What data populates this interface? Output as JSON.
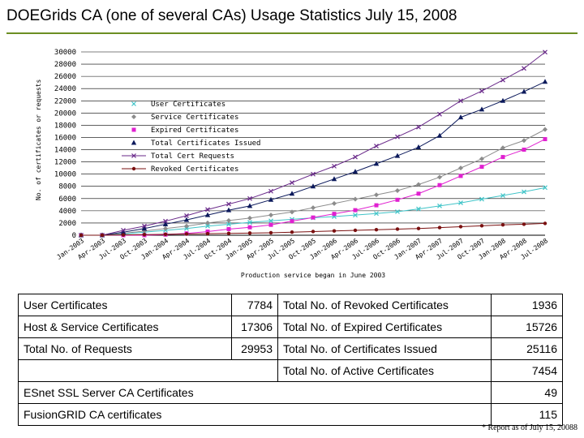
{
  "title": "DOEGrids CA (one of several CAs) Usage Statistics July 15, 2008",
  "footnote": "* Report as of July 15, 20088",
  "colors": {
    "accent_rule": "#6b8e23"
  },
  "stats": {
    "user_certificates_label": "User Certificates",
    "user_certificates_value": "7784",
    "revoked_label": "Total No. of Revoked Certificates",
    "revoked_value": "1936",
    "host_service_label": "Host & Service Certificates",
    "host_service_value": "17306",
    "expired_label": "Total No. of Expired Certificates",
    "expired_value": "15726",
    "requests_label": "Total No. of Requests",
    "requests_value": "29953",
    "issued_label": "Total No. of Certificates Issued",
    "issued_value": "25116",
    "active_label": "Total No. of Active Certificates",
    "active_value": "7454",
    "esnet_label": "ESnet SSL Server CA Certificates",
    "esnet_value": "49",
    "fusiongrid_label": "FusionGRID CA certificates",
    "fusiongrid_value": "115"
  },
  "chart_data": {
    "type": "line",
    "ylabel": "No. of certificates or requests",
    "xlabel": "Production service began in June 2003",
    "ylim": [
      0,
      30000
    ],
    "yticks": [
      "0",
      "2000",
      "4000",
      "6000",
      "8000",
      "10000",
      "12000",
      "14000",
      "16000",
      "18000",
      "20000",
      "22000",
      "24000",
      "26000",
      "28000",
      "30000"
    ],
    "categories": [
      "Jan-2003",
      "Apr-2003",
      "Jul-2003",
      "Oct-2003",
      "Jan-2004",
      "Apr-2004",
      "Jul-2004",
      "Oct-2004",
      "Jan-2005",
      "Apr-2005",
      "Jul-2005",
      "Oct-2005",
      "Jan-2006",
      "Apr-2006",
      "Jul-2006",
      "Oct-2006",
      "Jan-2007",
      "Apr-2007",
      "Jul-2007",
      "Oct-2007",
      "Jan-2008",
      "Apr-2008",
      "Jul-2008"
    ],
    "legend_position": "upper-left",
    "series": [
      {
        "name": "User Certificates",
        "marker": "x",
        "color": "#40c4c8",
        "values": [
          0,
          0,
          200,
          500,
          800,
          1100,
          1500,
          1800,
          2100,
          2350,
          2600,
          2850,
          3050,
          3300,
          3550,
          3850,
          4300,
          4800,
          5300,
          5900,
          6500,
          7100,
          7784
        ]
      },
      {
        "name": "Service Certificates",
        "marker": "diamond",
        "color": "#8c8c8c",
        "values": [
          0,
          0,
          300,
          700,
          1100,
          1500,
          2000,
          2400,
          2800,
          3300,
          3800,
          4500,
          5200,
          5900,
          6600,
          7300,
          8300,
          9500,
          11000,
          12500,
          14300,
          15500,
          17306
        ]
      },
      {
        "name": "Expired Certificates",
        "marker": "square",
        "color": "#e020d0",
        "values": [
          0,
          0,
          0,
          0,
          100,
          300,
          600,
          1000,
          1300,
          1700,
          2300,
          2900,
          3500,
          4100,
          4900,
          5800,
          6800,
          8200,
          9700,
          11200,
          12800,
          14000,
          15726
        ]
      },
      {
        "name": "Total Certificates Issued",
        "marker": "triangle",
        "color": "#0c1a5c",
        "values": [
          0,
          0,
          500,
          1100,
          1800,
          2500,
          3300,
          4100,
          4800,
          5800,
          6800,
          8000,
          9200,
          10400,
          11700,
          13000,
          14400,
          16300,
          19300,
          20600,
          22000,
          23500,
          25116
        ]
      },
      {
        "name": "Total Cert Requests",
        "marker": "x",
        "color": "#6a2a8a",
        "values": [
          0,
          0,
          800,
          1500,
          2300,
          3200,
          4200,
          5100,
          6000,
          7200,
          8600,
          10000,
          11300,
          12800,
          14600,
          16100,
          17700,
          19800,
          22000,
          23600,
          25400,
          27300,
          29953
        ]
      },
      {
        "name": "Revoked Certificates",
        "marker": "dot",
        "color": "#7a1010",
        "values": [
          0,
          0,
          50,
          100,
          150,
          200,
          250,
          300,
          350,
          400,
          500,
          600,
          700,
          800,
          900,
          1000,
          1100,
          1250,
          1400,
          1550,
          1700,
          1800,
          1936
        ]
      }
    ]
  }
}
